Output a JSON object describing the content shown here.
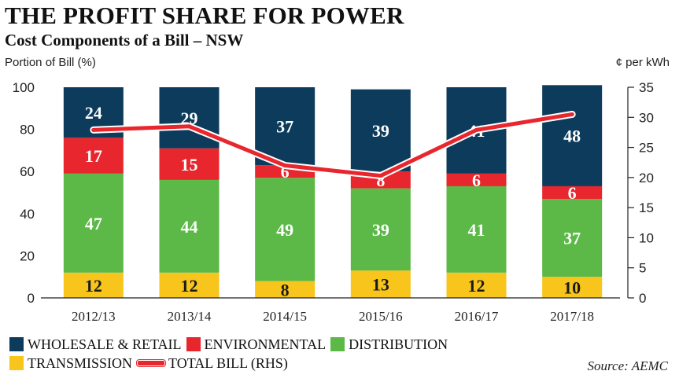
{
  "header": {
    "title": "THE PROFIT SHARE FOR POWER",
    "subtitle": "Cost Components of a Bill – NSW"
  },
  "source": "Source: AEMC",
  "colors": {
    "wholesale_retail": "#0d3b5c",
    "environmental": "#e8262d",
    "distribution": "#5cb947",
    "transmission": "#f7c51c",
    "total_bill": "#e8262d"
  },
  "chart_data": {
    "type": "bar",
    "stacked": true,
    "ylabel": "Portion of Bill (%)",
    "ylabel_right": "¢ per kWh",
    "ylim": [
      0,
      100
    ],
    "y_ticks": [
      0,
      20,
      40,
      60,
      80,
      100
    ],
    "ylim_right": [
      0,
      35
    ],
    "y_ticks_right": [
      0,
      5,
      10,
      15,
      20,
      25,
      30,
      35
    ],
    "categories": [
      "2012/13",
      "2013/14",
      "2014/15",
      "2015/16",
      "2016/17",
      "2017/18"
    ],
    "series": [
      {
        "name": "TRANSMISSION",
        "key": "transmission",
        "values": [
          12,
          12,
          8,
          13,
          12,
          10
        ]
      },
      {
        "name": "DISTRIBUTION",
        "key": "distribution",
        "values": [
          47,
          44,
          49,
          39,
          41,
          37
        ]
      },
      {
        "name": "ENVIRONMENTAL",
        "key": "environmental",
        "values": [
          17,
          15,
          6,
          8,
          6,
          6
        ]
      },
      {
        "name": "WHOLESALE & RETAIL",
        "key": "wholesale_retail",
        "values": [
          24,
          29,
          37,
          39,
          41,
          48
        ]
      }
    ],
    "line_series": {
      "name": "TOTAL BILL (RHS)",
      "axis": "right",
      "values": [
        27.9,
        28.5,
        22.0,
        20.3,
        27.9,
        30.5
      ]
    },
    "legend": {
      "placement": "bottom-left",
      "row1": [
        "WHOLESALE & RETAIL",
        "ENVIRONMENTAL",
        "DISTRIBUTION"
      ],
      "row2": [
        "TRANSMISSION",
        "TOTAL BILL (RHS)"
      ]
    }
  }
}
